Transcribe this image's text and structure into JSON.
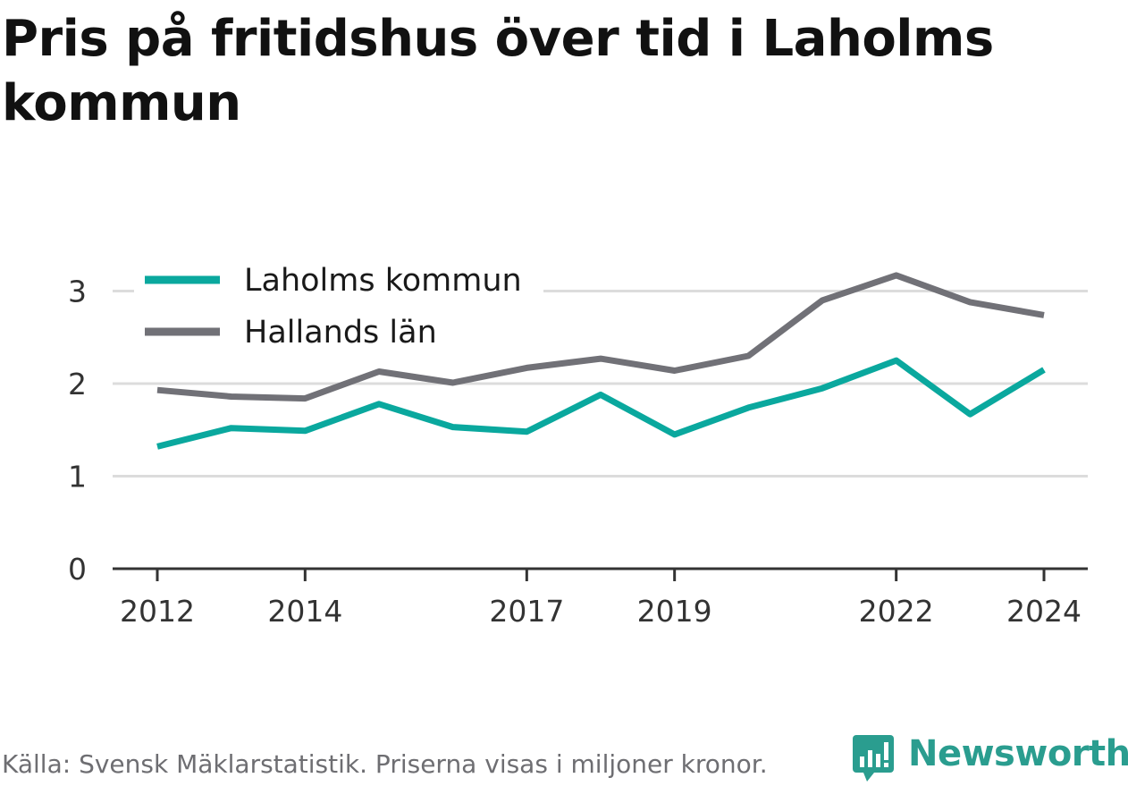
{
  "title": "Pris på fritidshus över tid i Laholms kommun",
  "footer": {
    "source": "Källa: Svensk Mäklarstatistik. Priserna visas i miljoner kronor.",
    "brand": "Newsworthy"
  },
  "colors": {
    "laholm": "#0aa89e",
    "halland": "#717177",
    "grid": "#dcdcdc",
    "axis": "#333333",
    "brand": "#2a9d8f"
  },
  "chart_data": {
    "type": "line",
    "title": "Pris på fritidshus över tid i Laholms kommun",
    "xlabel": "",
    "ylabel": "",
    "x": [
      2012,
      2013,
      2014,
      2015,
      2016,
      2017,
      2018,
      2019,
      2020,
      2021,
      2022,
      2023,
      2024
    ],
    "x_ticks": [
      2012,
      2014,
      2017,
      2019,
      2022,
      2024
    ],
    "y_ticks": [
      0,
      1,
      2,
      3
    ],
    "ylim": [
      0,
      3.3
    ],
    "grid": true,
    "legend_position": "top-left",
    "series": [
      {
        "name": "Laholms kommun",
        "color": "#0aa89e",
        "values": [
          1.32,
          1.52,
          1.49,
          1.78,
          1.53,
          1.48,
          1.88,
          1.45,
          1.74,
          1.95,
          2.25,
          1.67,
          2.15
        ]
      },
      {
        "name": "Hallands län",
        "color": "#717177",
        "values": [
          1.93,
          1.86,
          1.84,
          2.13,
          2.01,
          2.17,
          2.27,
          2.14,
          2.3,
          2.9,
          3.17,
          2.88,
          2.74
        ]
      }
    ]
  }
}
